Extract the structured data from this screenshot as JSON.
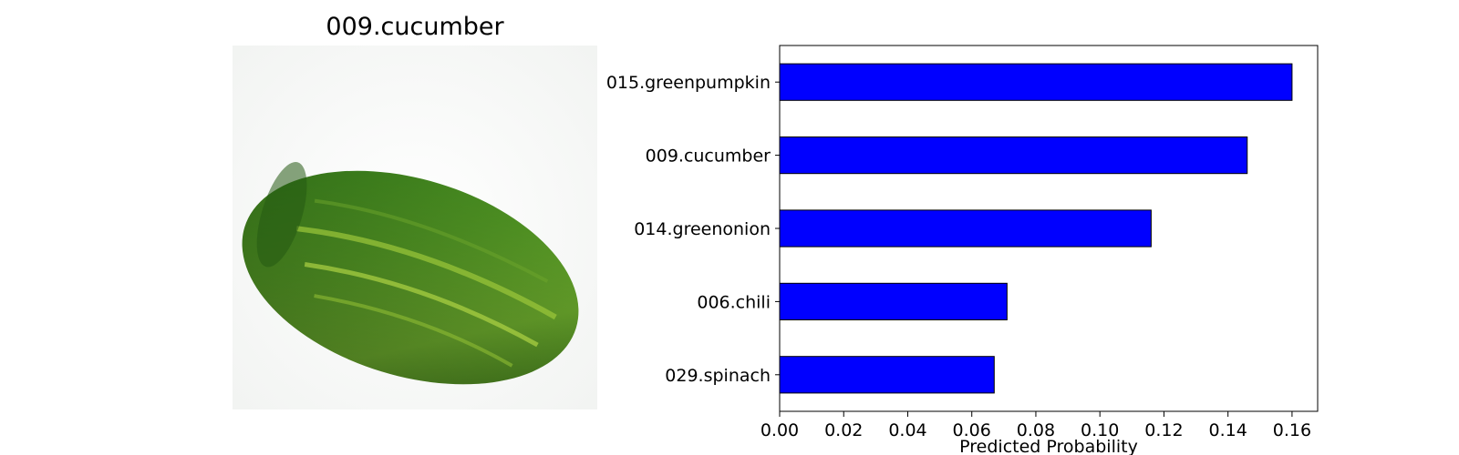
{
  "image_panel": {
    "title": "009.cucumber",
    "photo_icon": "cucumber-photo"
  },
  "chart_data": {
    "type": "bar",
    "orientation": "horizontal",
    "categories": [
      "015.greenpumpkin",
      "009.cucumber",
      "014.greenonion",
      "006.chili",
      "029.spinach"
    ],
    "values": [
      0.16,
      0.146,
      0.116,
      0.071,
      0.067
    ],
    "xlabel": "Predicted Probability",
    "ylabel": "",
    "xlim": [
      0,
      0.168
    ],
    "xticks": [
      "0.00",
      "0.02",
      "0.04",
      "0.06",
      "0.08",
      "0.10",
      "0.12",
      "0.14",
      "0.16"
    ],
    "bar_color": "#0000ff",
    "edge_color": "#000000",
    "grid": false
  }
}
